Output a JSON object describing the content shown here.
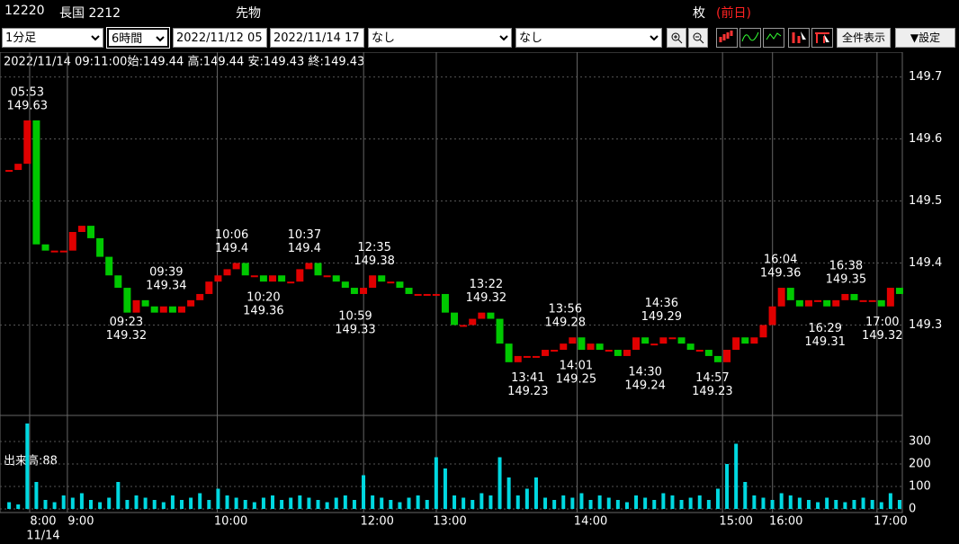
{
  "header": {
    "code": "12220",
    "name": "長国 2212",
    "kind": "先物",
    "unit": "枚",
    "prev": "(前日)"
  },
  "toolbar": {
    "interval": "1分足",
    "span": "6時間",
    "from": "2022/11/12 05",
    "to": "2022/11/14 17",
    "indicator1": "なし",
    "indicator2": "なし",
    "show_all": "全件表示",
    "settings": "▼設定"
  },
  "chart_data": {
    "type": "candlestick",
    "info": "2022/11/14 09:11:00始:149.44 高:149.44 安:149.43 終:149.43",
    "up_color": "#e00000",
    "down_color": "#00c800",
    "volume_color": "#00d8e0",
    "close": [
      149.55,
      149.56,
      149.63,
      149.43,
      149.42,
      149.42,
      149.42,
      149.45,
      149.46,
      149.44,
      149.41,
      149.38,
      149.36,
      149.32,
      149.34,
      149.33,
      149.32,
      149.33,
      149.32,
      149.33,
      149.34,
      149.35,
      149.37,
      149.38,
      149.39,
      149.4,
      149.38,
      149.38,
      149.37,
      149.38,
      149.37,
      149.37,
      149.39,
      149.4,
      149.38,
      149.38,
      149.37,
      149.36,
      149.35,
      149.36,
      149.38,
      149.37,
      149.37,
      149.36,
      149.35,
      149.35,
      149.35,
      149.35,
      149.32,
      149.3,
      149.3,
      149.31,
      149.32,
      149.31,
      149.27,
      149.24,
      149.25,
      149.25,
      149.25,
      149.26,
      149.26,
      149.27,
      149.28,
      149.26,
      149.27,
      149.26,
      149.26,
      149.25,
      149.26,
      149.28,
      149.27,
      149.27,
      149.28,
      149.28,
      149.27,
      149.26,
      149.26,
      149.25,
      149.24,
      149.26,
      149.28,
      149.27,
      149.28,
      149.3,
      149.33,
      149.36,
      149.34,
      149.33,
      149.34,
      149.34,
      149.33,
      149.34,
      149.35,
      149.34,
      149.34,
      149.34,
      149.33,
      149.36,
      149.35
    ],
    "volume": [
      30,
      20,
      380,
      120,
      40,
      30,
      60,
      50,
      70,
      40,
      30,
      50,
      120,
      40,
      60,
      50,
      40,
      30,
      60,
      40,
      50,
      70,
      40,
      90,
      60,
      50,
      40,
      30,
      50,
      60,
      40,
      50,
      60,
      50,
      40,
      30,
      50,
      60,
      40,
      150,
      60,
      50,
      40,
      30,
      50,
      60,
      40,
      230,
      180,
      60,
      50,
      40,
      70,
      60,
      230,
      140,
      60,
      90,
      140,
      50,
      40,
      60,
      50,
      70,
      40,
      60,
      50,
      40,
      30,
      60,
      50,
      40,
      70,
      60,
      40,
      50,
      60,
      40,
      90,
      200,
      290,
      120,
      60,
      50,
      40,
      70,
      60,
      50,
      40,
      30,
      50,
      40,
      30,
      40,
      50,
      40,
      30,
      70,
      40
    ],
    "volume_label": "出来高:88",
    "xlim": [
      -1,
      98.3
    ],
    "xticks": [
      {
        "value": 3.75,
        "label": "8:00"
      },
      {
        "value": 7.9,
        "label": "9:00"
      },
      {
        "value": 24.4,
        "label": "10:00"
      },
      {
        "value": 40.5,
        "label": "12:00"
      },
      {
        "value": 48.5,
        "label": "13:00"
      },
      {
        "value": 64,
        "label": "14:00"
      },
      {
        "value": 80,
        "label": "15:00"
      },
      {
        "value": 85.5,
        "label": "16:00"
      },
      {
        "value": 97,
        "label": "17:00"
      }
    ],
    "date_label": "11/14",
    "ylim": [
      149.16,
      149.74
    ],
    "yticks": [
      149.7,
      149.6,
      149.5,
      149.4,
      149.3
    ],
    "vlim": [
      0,
      380
    ],
    "vticks": [
      0,
      100,
      200,
      300
    ],
    "annotations": [
      {
        "x": 2,
        "time": "05:53",
        "price": 149.63,
        "placement": "above"
      },
      {
        "x": 12.9,
        "time": "09:23",
        "price": 149.32,
        "placement": "below"
      },
      {
        "x": 17.3,
        "time": "09:39",
        "price": 149.34,
        "placement": "above"
      },
      {
        "x": 24.5,
        "time": "10:06",
        "price": 149.4,
        "placement": "above"
      },
      {
        "x": 28,
        "time": "10:20",
        "price": 149.36,
        "placement": "below"
      },
      {
        "x": 32.5,
        "time": "10:37",
        "price": 149.4,
        "placement": "above"
      },
      {
        "x": 38.1,
        "time": "10:59",
        "price": 149.33,
        "placement": "below"
      },
      {
        "x": 40.2,
        "time": "12:35",
        "price": 149.38,
        "placement": "above"
      },
      {
        "x": 52.5,
        "time": "13:22",
        "price": 149.32,
        "placement": "above"
      },
      {
        "x": 57.1,
        "time": "13:41",
        "price": 149.23,
        "placement": "below"
      },
      {
        "x": 61.2,
        "time": "13:56",
        "price": 149.28,
        "placement": "above"
      },
      {
        "x": 62.4,
        "time": "14:01",
        "price": 149.25,
        "placement": "below"
      },
      {
        "x": 70,
        "time": "14:30",
        "price": 149.24,
        "placement": "below"
      },
      {
        "x": 71.8,
        "time": "14:36",
        "price": 149.29,
        "placement": "above"
      },
      {
        "x": 77.4,
        "time": "14:57",
        "price": 149.23,
        "placement": "below"
      },
      {
        "x": 84.9,
        "time": "16:04",
        "price": 149.36,
        "placement": "above"
      },
      {
        "x": 89.8,
        "time": "16:29",
        "price": 149.31,
        "placement": "below"
      },
      {
        "x": 92.1,
        "time": "16:38",
        "price": 149.35,
        "placement": "above"
      },
      {
        "x": 96.1,
        "time": "17:00",
        "price": 149.32,
        "placement": "below"
      }
    ]
  }
}
